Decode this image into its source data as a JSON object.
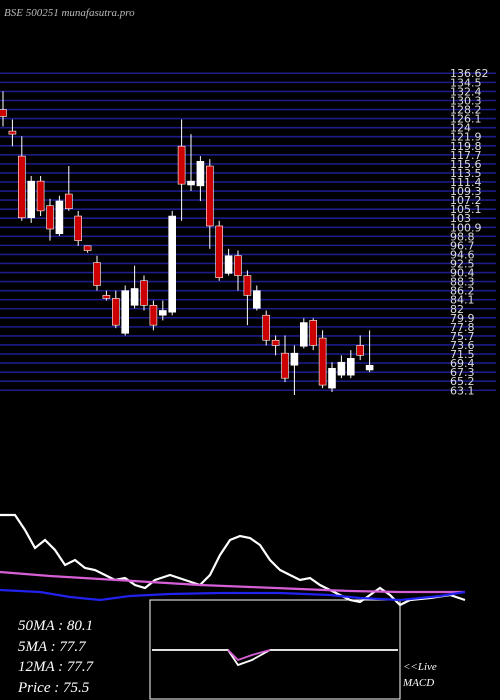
{
  "chart_data": {
    "type": "candlestick",
    "title": "BSE 500251 munafasutra.pro",
    "ylim": [
      62,
      137
    ],
    "yticks": [
      136.62,
      134.5,
      132.4,
      130.3,
      128.2,
      126.1,
      124,
      121.9,
      119.8,
      117.7,
      115.6,
      113.5,
      111.4,
      109.3,
      107.2,
      105.1,
      103,
      100.9,
      98.8,
      96.7,
      94.6,
      92.5,
      90.4,
      88.3,
      86.2,
      84.1,
      82,
      79.9,
      77.8,
      75.7,
      73.6,
      71.5,
      69.4,
      67.3,
      65.2,
      63.1
    ],
    "grid": true,
    "grid_color": "#1c1c8a",
    "up_color": "#ffffff",
    "down_color": "#cc0000",
    "open": [
      128.2,
      123.2,
      117.4,
      103.1,
      111.6,
      105.9,
      99.4,
      108.6,
      103.5,
      96.6,
      92.7,
      85.1,
      84.4,
      76.3,
      82.8,
      88.5,
      82.8,
      80.5,
      81.2,
      119.7,
      110.7,
      110.5,
      115.1,
      101.2,
      90.2,
      94.3,
      89.7,
      82.1,
      80.5,
      74.7,
      71.7,
      68.9,
      73.3,
      79.3,
      75.2,
      63.6,
      66.6,
      66.6,
      73.5,
      67.8
    ],
    "high": [
      132.4,
      125.9,
      122.0,
      112.8,
      112.8,
      107.5,
      108.2,
      115.1,
      104.7,
      96.6,
      94.3,
      86.2,
      86.2,
      87.4,
      92.0,
      89.7,
      83.9,
      83.9,
      104.7,
      125.9,
      122.5,
      117.4,
      116.7,
      102.4,
      95.9,
      95.5,
      90.9,
      87.4,
      81.6,
      75.8,
      75.8,
      73.5,
      79.8,
      79.8,
      77.0,
      69.6,
      71.2,
      72.4,
      75.8,
      77.0
    ],
    "low": [
      124.3,
      119.7,
      102.4,
      101.9,
      103.5,
      97.8,
      98.9,
      104.7,
      96.6,
      95.0,
      86.2,
      83.9,
      77.5,
      75.8,
      82.1,
      81.6,
      77.0,
      79.3,
      80.5,
      102.4,
      109.3,
      107.0,
      95.9,
      88.5,
      89.7,
      86.2,
      78.2,
      81.6,
      73.5,
      71.2,
      65.0,
      62.0,
      72.8,
      72.4,
      63.6,
      62.7,
      65.9,
      65.9,
      70.1,
      67.3
    ],
    "close": [
      126.6,
      122.5,
      103.1,
      111.6,
      104.7,
      100.5,
      107.0,
      105.2,
      97.8,
      95.5,
      87.4,
      84.4,
      78.2,
      86.2,
      86.7,
      82.8,
      78.2,
      81.6,
      103.5,
      110.9,
      111.6,
      116.2,
      101.2,
      89.2,
      94.3,
      89.7,
      85.1,
      86.2,
      74.7,
      73.5,
      65.9,
      71.7,
      78.8,
      73.5,
      64.3,
      68.2,
      69.6,
      70.5,
      71.2,
      68.9
    ],
    "indicator": {
      "xlim": [
        0,
        500
      ],
      "ylim": [
        0,
        110
      ],
      "series": [
        {
          "name": null,
          "color": "#ffffff",
          "x": [
            0,
            15,
            25,
            35,
            45,
            55,
            65,
            75,
            85,
            95,
            105,
            115,
            125,
            135,
            145,
            155,
            170,
            185,
            200,
            210,
            220,
            230,
            240,
            250,
            260,
            270,
            280,
            290,
            300,
            310,
            320,
            330,
            340,
            350,
            360,
            370,
            380,
            390,
            400,
            410,
            430,
            450,
            465
          ],
          "values": [
            95,
            95,
            80,
            62,
            70,
            60,
            45,
            50,
            42,
            40,
            35,
            30,
            32,
            25,
            22,
            30,
            35,
            30,
            25,
            35,
            55,
            70,
            74,
            72,
            65,
            50,
            40,
            35,
            30,
            32,
            25,
            20,
            15,
            10,
            8,
            15,
            22,
            15,
            5,
            10,
            12,
            15,
            10
          ]
        },
        {
          "name": null,
          "color": "#d65fd6",
          "x": [
            0,
            50,
            100,
            150,
            200,
            250,
            300,
            350,
            400,
            465
          ],
          "values": [
            38,
            34,
            31,
            28,
            25,
            23,
            21,
            19,
            18,
            18
          ]
        },
        {
          "name": null,
          "color": "#2222ee",
          "x": [
            0,
            40,
            70,
            100,
            130,
            170,
            220,
            280,
            330,
            360,
            400,
            440,
            465
          ],
          "values": [
            20,
            18,
            13,
            10,
            14,
            16,
            17,
            17,
            15,
            12,
            10,
            14,
            18
          ]
        }
      ]
    },
    "macd": {
      "xlim": [
        150,
        400
      ],
      "ylim": [
        -10,
        10
      ],
      "series": [
        {
          "name": null,
          "color": "#ffffff",
          "x": [
            152,
            228,
            238,
            252,
            270,
            398
          ],
          "values": [
            0,
            0,
            -3,
            -2,
            0,
            0
          ]
        },
        {
          "name": null,
          "color": "#d65fd6",
          "x": [
            228,
            238,
            252,
            270
          ],
          "values": [
            0,
            -2,
            -1,
            0
          ]
        }
      ]
    },
    "stats": [
      "50MA : 80.1",
      "5MA : 77.7",
      "12MA : 77.7",
      "Price  : 75.5"
    ],
    "live_label": "<<Live",
    "macd_label": "MACD"
  }
}
